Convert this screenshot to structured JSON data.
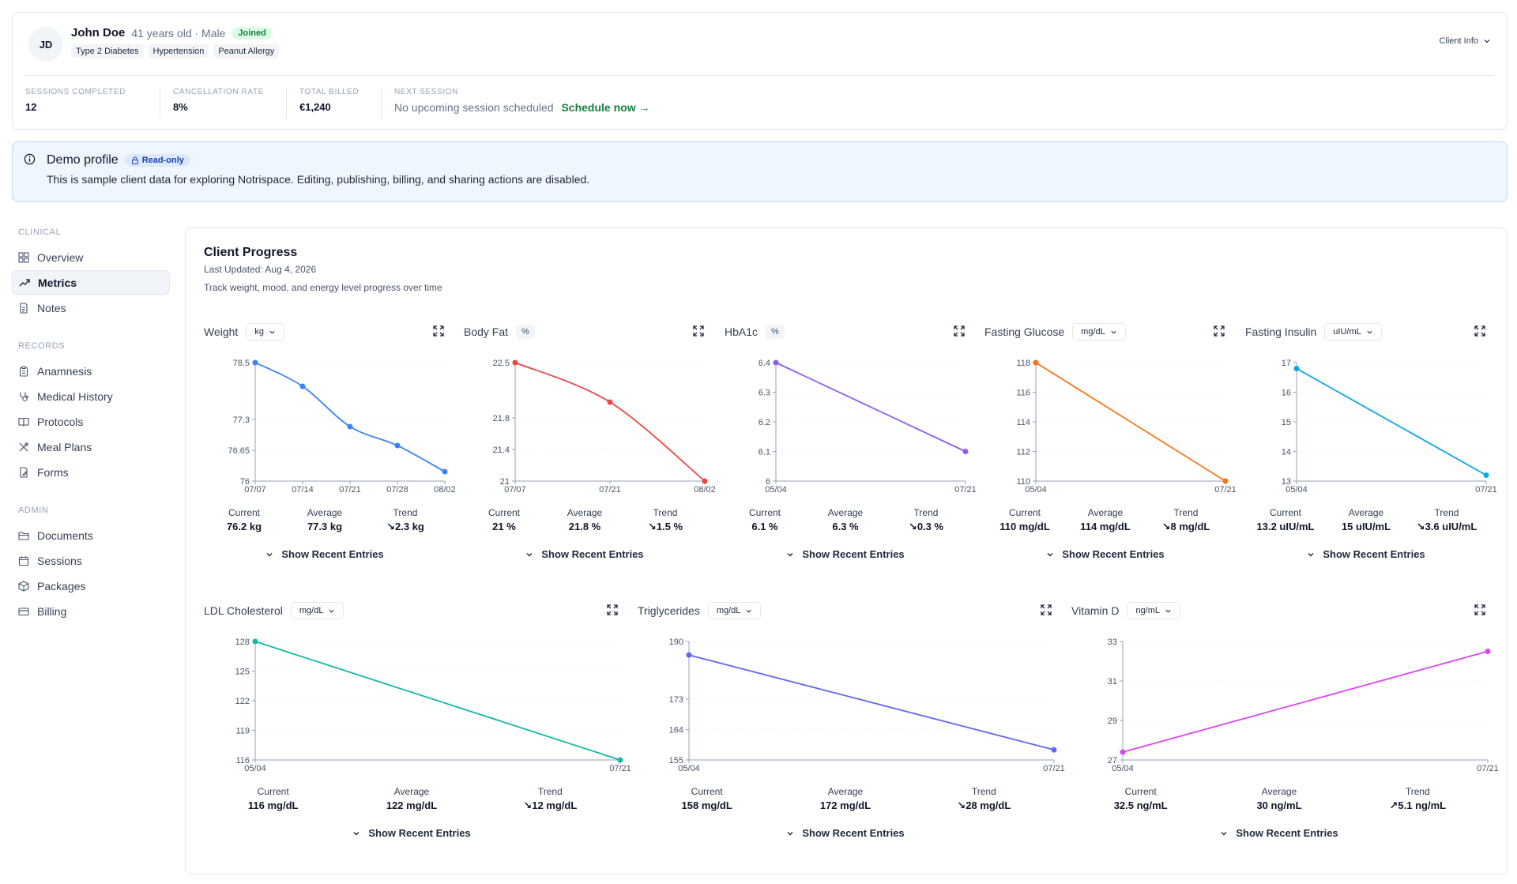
{
  "client": {
    "initials": "JD",
    "name": "John Doe",
    "meta": "41 years old · Male",
    "status_badge": "Joined",
    "tags": [
      "Type 2 Diabetes",
      "Hypertension",
      "Peanut Allergy"
    ],
    "info_button": "Client Info"
  },
  "stats": [
    {
      "label": "Sessions Completed",
      "value": "12"
    },
    {
      "label": "Cancellation Rate",
      "value": "8%"
    },
    {
      "label": "Total Billed",
      "value": "€1,240"
    },
    {
      "label": "Next Session",
      "value": "No upcoming session scheduled",
      "link": "Schedule now →"
    }
  ],
  "banner": {
    "title": "Demo profile",
    "badge": "Read-only",
    "text": "This is sample client data for exploring Notrispace. Editing, publishing, billing, and sharing actions are disabled."
  },
  "sidebar": {
    "sections": [
      {
        "title": "Clinical",
        "items": [
          {
            "label": "Overview",
            "icon": "grid-icon"
          },
          {
            "label": "Metrics",
            "icon": "trending-up-icon",
            "active": true
          },
          {
            "label": "Notes",
            "icon": "file-text-icon"
          }
        ]
      },
      {
        "title": "Records",
        "items": [
          {
            "label": "Anamnesis",
            "icon": "clipboard-icon"
          },
          {
            "label": "Medical History",
            "icon": "stethoscope-icon"
          },
          {
            "label": "Protocols",
            "icon": "book-icon"
          },
          {
            "label": "Meal Plans",
            "icon": "utensils-icon"
          },
          {
            "label": "Forms",
            "icon": "form-icon"
          }
        ]
      },
      {
        "title": "Admin",
        "items": [
          {
            "label": "Documents",
            "icon": "folder-icon"
          },
          {
            "label": "Sessions",
            "icon": "calendar-icon"
          },
          {
            "label": "Packages",
            "icon": "package-icon"
          },
          {
            "label": "Billing",
            "icon": "credit-card-icon"
          }
        ]
      }
    ]
  },
  "progress": {
    "title": "Client Progress",
    "last_updated": "Last Updated: Aug 4, 2026",
    "subtitle": "Track weight, mood, and energy level progress over time"
  },
  "labels": {
    "current": "Current",
    "average": "Average",
    "trend": "Trend",
    "show_recent": "Show Recent Entries"
  },
  "metrics": [
    {
      "name": "Weight",
      "unit": "kg",
      "unit_dropdown": true,
      "color": "#3b82f6",
      "current": "76.2 kg",
      "average": "77.3 kg",
      "trend": "↘2.3 kg"
    },
    {
      "name": "Body Fat",
      "unit": "%",
      "unit_dropdown": false,
      "color": "#ef4444",
      "current": "21 %",
      "average": "21.8 %",
      "trend": "↘1.5 %"
    },
    {
      "name": "HbA1c",
      "unit": "%",
      "unit_dropdown": false,
      "color": "#8b5cf6",
      "current": "6.1 %",
      "average": "6.3 %",
      "trend": "↘0.3 %"
    },
    {
      "name": "Fasting Glucose",
      "unit": "mg/dL",
      "unit_dropdown": true,
      "color": "#f97316",
      "current": "110 mg/dL",
      "average": "114 mg/dL",
      "trend": "↘8 mg/dL"
    },
    {
      "name": "Fasting Insulin",
      "unit": "uIU/mL",
      "unit_dropdown": true,
      "color": "#0ea5e9",
      "current": "13.2 uIU/mL",
      "average": "15 uIU/mL",
      "trend": "↘3.6 uIU/mL"
    },
    {
      "name": "LDL Cholesterol",
      "unit": "mg/dL",
      "unit_dropdown": true,
      "color": "#14b8a6",
      "current": "116 mg/dL",
      "average": "122 mg/dL",
      "trend": "↘12 mg/dL"
    },
    {
      "name": "Triglycerides",
      "unit": "mg/dL",
      "unit_dropdown": true,
      "color": "#6366f1",
      "current": "158 mg/dL",
      "average": "172 mg/dL",
      "trend": "↘28 mg/dL"
    },
    {
      "name": "Vitamin D",
      "unit": "ng/mL",
      "unit_dropdown": true,
      "color": "#d946ef",
      "current": "32.5 ng/mL",
      "average": "30 ng/mL",
      "trend": "↗5.1 ng/mL"
    }
  ],
  "chart_data": [
    {
      "type": "line",
      "title": "Weight",
      "x": [
        "07/07",
        "07/14",
        "07/21",
        "07/28",
        "08/02"
      ],
      "values": [
        78.5,
        78.0,
        77.15,
        76.75,
        76.2
      ],
      "yticks": [
        "78.5",
        "77.3",
        "76.65",
        "76"
      ],
      "ylim": [
        76,
        78.5
      ],
      "xticks": [
        "07/07",
        "07/14",
        "07/21",
        "07/28",
        "08/02"
      ]
    },
    {
      "type": "line",
      "title": "Body Fat",
      "x": [
        "07/07",
        "07/21",
        "08/02"
      ],
      "values": [
        22.5,
        22.0,
        21.0
      ],
      "yticks": [
        "22.5",
        "21.8",
        "21.4",
        "21"
      ],
      "ylim": [
        21,
        22.5
      ],
      "xticks": [
        "07/07",
        "07/21",
        "08/02"
      ]
    },
    {
      "type": "line",
      "title": "HbA1c",
      "x": [
        "05/04",
        "07/21"
      ],
      "values": [
        6.4,
        6.1
      ],
      "yticks": [
        "6.4",
        "6.3",
        "6.2",
        "6.1",
        "6"
      ],
      "ylim": [
        6,
        6.4
      ],
      "xticks": [
        "05/04",
        "07/21"
      ]
    },
    {
      "type": "line",
      "title": "Fasting Glucose",
      "x": [
        "05/04",
        "07/21"
      ],
      "values": [
        118,
        110
      ],
      "yticks": [
        "118",
        "116",
        "114",
        "112",
        "110"
      ],
      "ylim": [
        110,
        118
      ],
      "xticks": [
        "05/04",
        "07/21"
      ]
    },
    {
      "type": "line",
      "title": "Fasting Insulin",
      "x": [
        "05/04",
        "07/21"
      ],
      "values": [
        16.8,
        13.2
      ],
      "yticks": [
        "17",
        "16",
        "15",
        "14",
        "13"
      ],
      "ylim": [
        13,
        17
      ],
      "xticks": [
        "05/04",
        "07/21"
      ]
    },
    {
      "type": "line",
      "title": "LDL Cholesterol",
      "x": [
        "05/04",
        "07/21"
      ],
      "values": [
        128,
        116
      ],
      "yticks": [
        "128",
        "125",
        "122",
        "119",
        "116"
      ],
      "ylim": [
        116,
        128
      ],
      "xticks": [
        "05/04",
        "07/21"
      ]
    },
    {
      "type": "line",
      "title": "Triglycerides",
      "x": [
        "05/04",
        "07/21"
      ],
      "values": [
        186,
        158
      ],
      "yticks": [
        "190",
        "173",
        "164",
        "155"
      ],
      "ylim": [
        155,
        190
      ],
      "xticks": [
        "05/04",
        "07/21"
      ]
    },
    {
      "type": "line",
      "title": "Vitamin D",
      "x": [
        "05/04",
        "07/21"
      ],
      "values": [
        27.4,
        32.5
      ],
      "yticks": [
        "33",
        "31",
        "29",
        "27"
      ],
      "ylim": [
        27,
        33
      ],
      "xticks": [
        "05/04",
        "07/21"
      ]
    }
  ]
}
